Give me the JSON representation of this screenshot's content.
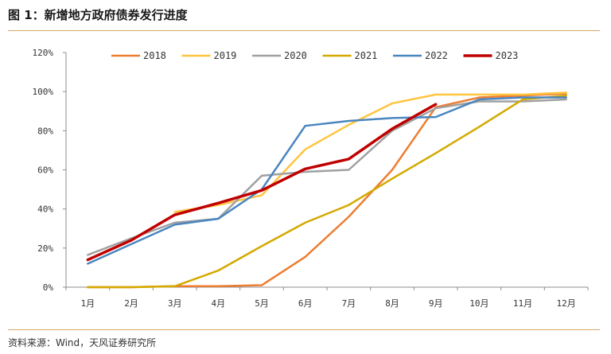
{
  "header": {
    "title": "图 1：新增地方政府债券发行进度"
  },
  "footer": {
    "source": "资料来源：Wind，天风证券研究所"
  },
  "chart_data": {
    "type": "line",
    "title": "",
    "xlabel": "",
    "ylabel": "",
    "categories": [
      "1月",
      "2月",
      "3月",
      "4月",
      "5月",
      "6月",
      "7月",
      "8月",
      "9月",
      "10月",
      "11月",
      "12月"
    ],
    "ylim": [
      0,
      120
    ],
    "yticks": [
      0,
      20,
      40,
      60,
      80,
      100,
      120
    ],
    "ytick_labels": [
      "0%",
      "20%",
      "40%",
      "60%",
      "80%",
      "100%",
      "120%"
    ],
    "grid": false,
    "legend_position": "top",
    "series": [
      {
        "name": "2018",
        "color": "#ed7d31",
        "width": 2.5,
        "values": [
          0,
          0,
          0.5,
          0.5,
          1,
          15.5,
          36,
          60,
          92,
          97,
          98,
          99
        ]
      },
      {
        "name": "2019",
        "color": "#ffc53f",
        "width": 2.5,
        "values": [
          null,
          null,
          38.5,
          42,
          47,
          70.5,
          83,
          94,
          98.5,
          98.5,
          98.5,
          99.5
        ]
      },
      {
        "name": "2020",
        "color": "#a0a0a0",
        "width": 2.5,
        "values": [
          16.5,
          25,
          33,
          35,
          57,
          59,
          60,
          80,
          91.5,
          95,
          95,
          96
        ]
      },
      {
        "name": "2021",
        "color": "#d4a900",
        "width": 2.5,
        "values": [
          0,
          0,
          0.5,
          8.5,
          21,
          33,
          42,
          55.5,
          68.5,
          82,
          96,
          98
        ]
      },
      {
        "name": "2022",
        "color": "#4a86c0",
        "width": 2.5,
        "values": [
          12,
          22,
          32,
          35,
          50,
          82.5,
          85,
          86.5,
          87,
          96,
          97,
          97
        ]
      },
      {
        "name": "2023",
        "color": "#c00000",
        "width": 3.5,
        "values": [
          14,
          24,
          37,
          43,
          49.5,
          60.5,
          65.5,
          81,
          93.5,
          null,
          null,
          null
        ]
      }
    ]
  }
}
